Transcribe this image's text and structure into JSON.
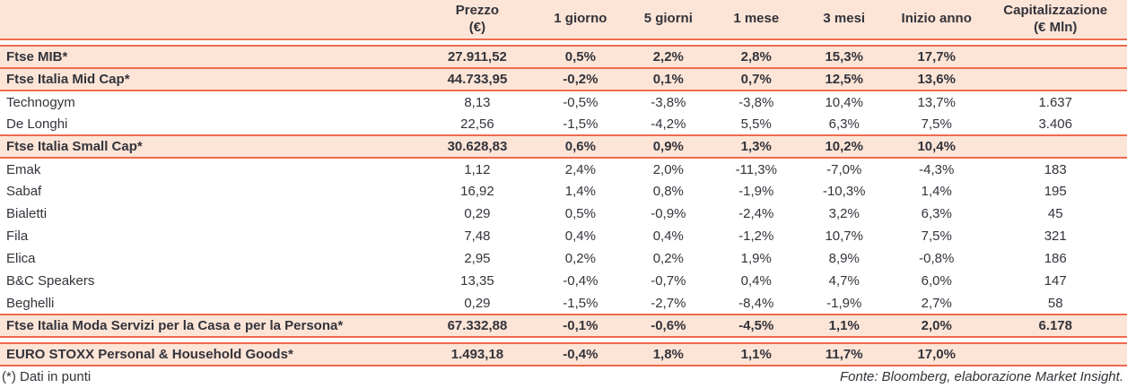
{
  "colors": {
    "accent": "#ef6a4d",
    "band": "#fce5d7",
    "text": "#33333b"
  },
  "table": {
    "columns": [
      {
        "key": "name",
        "label_line1": "",
        "label_line2": ""
      },
      {
        "key": "prezzo",
        "label_line1": "Prezzo",
        "label_line2": "(€)"
      },
      {
        "key": "g1",
        "label_line1": "1 giorno",
        "label_line2": ""
      },
      {
        "key": "g5",
        "label_line1": "5 giorni",
        "label_line2": ""
      },
      {
        "key": "m1",
        "label_line1": "1 mese",
        "label_line2": ""
      },
      {
        "key": "m3",
        "label_line1": "3 mesi",
        "label_line2": ""
      },
      {
        "key": "ytd",
        "label_line1": "Inizio anno",
        "label_line2": ""
      },
      {
        "key": "cap",
        "label_line1": "Capitalizzazione",
        "label_line2": "(€ Mln)"
      }
    ],
    "rows": [
      {
        "type": "index",
        "gap_before": true,
        "cells": [
          "Ftse MIB*",
          "27.911,52",
          "0,5%",
          "2,2%",
          "2,8%",
          "15,3%",
          "17,7%",
          ""
        ]
      },
      {
        "type": "index",
        "cells": [
          "Ftse Italia Mid Cap*",
          "44.733,95",
          "-0,2%",
          "0,1%",
          "0,7%",
          "12,5%",
          "13,6%",
          ""
        ]
      },
      {
        "type": "stock",
        "cells": [
          "Technogym",
          "8,13",
          "-0,5%",
          "-3,8%",
          "-3,8%",
          "10,4%",
          "13,7%",
          "1.637"
        ]
      },
      {
        "type": "stock",
        "cells": [
          "De Longhi",
          "22,56",
          "-1,5%",
          "-4,2%",
          "5,5%",
          "6,3%",
          "7,5%",
          "3.406"
        ]
      },
      {
        "type": "index",
        "cells": [
          "Ftse Italia Small Cap*",
          "30.628,83",
          "0,6%",
          "0,9%",
          "1,3%",
          "10,2%",
          "10,4%",
          ""
        ]
      },
      {
        "type": "stock",
        "cells": [
          "Emak",
          "1,12",
          "2,4%",
          "2,0%",
          "-11,3%",
          "-7,0%",
          "-4,3%",
          "183"
        ]
      },
      {
        "type": "stock",
        "cells": [
          "Sabaf",
          "16,92",
          "1,4%",
          "0,8%",
          "-1,9%",
          "-10,3%",
          "1,4%",
          "195"
        ]
      },
      {
        "type": "stock",
        "cells": [
          "Bialetti",
          "0,29",
          "0,5%",
          "-0,9%",
          "-2,4%",
          "3,2%",
          "6,3%",
          "45"
        ]
      },
      {
        "type": "stock",
        "cells": [
          "Fila",
          "7,48",
          "0,4%",
          "0,4%",
          "-1,2%",
          "10,7%",
          "7,5%",
          "321"
        ]
      },
      {
        "type": "stock",
        "cells": [
          "Elica",
          "2,95",
          "0,2%",
          "0,2%",
          "1,9%",
          "8,9%",
          "-0,8%",
          "186"
        ]
      },
      {
        "type": "stock",
        "cells": [
          "B&C Speakers",
          "13,35",
          "-0,4%",
          "-0,7%",
          "0,4%",
          "4,7%",
          "6,0%",
          "147"
        ]
      },
      {
        "type": "stock",
        "cells": [
          "Beghelli",
          "0,29",
          "-1,5%",
          "-2,7%",
          "-8,4%",
          "-1,9%",
          "2,7%",
          "58"
        ]
      },
      {
        "type": "index",
        "cells": [
          "Ftse Italia Moda Servizi per la Casa e per la Persona*",
          "67.332,88",
          "-0,1%",
          "-0,6%",
          "-4,5%",
          "1,1%",
          "2,0%",
          "6.178"
        ]
      },
      {
        "type": "index",
        "gap_before": true,
        "cells": [
          "EURO STOXX Personal & Household Goods*",
          "1.493,18",
          "-0,4%",
          "1,8%",
          "1,1%",
          "11,7%",
          "17,0%",
          ""
        ]
      }
    ]
  },
  "footer": {
    "note": "(*) Dati in punti",
    "source": "Fonte: Bloomberg, elaborazione Market Insight."
  }
}
